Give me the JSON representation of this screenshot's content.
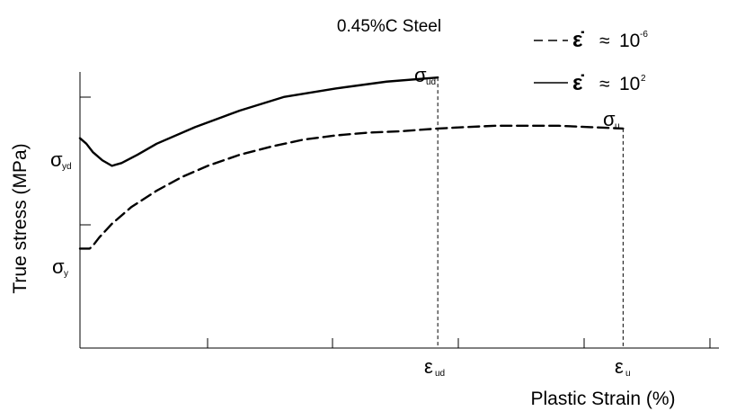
{
  "chart_data": {
    "type": "line",
    "title": "0.45%C Steel",
    "xlabel": "Plastic Strain (%)",
    "ylabel": "True stress (MPa)",
    "x_ticks": [
      "ε_ud",
      "ε_u"
    ],
    "y_ticks": [
      "σ_yd",
      "σ_y"
    ],
    "legend": {
      "placement": "top-right",
      "entries": [
        {
          "style": "dashed",
          "symbol": "ε̇",
          "relation": "≈",
          "base": "10",
          "exponent": "-6"
        },
        {
          "style": "solid",
          "symbol": "ε̇",
          "relation": "≈",
          "base": "10",
          "exponent": "2"
        }
      ]
    },
    "annotations": [
      {
        "base": "σ",
        "subscript": "ud"
      },
      {
        "base": "σ",
        "subscript": "u"
      },
      {
        "base": "σ",
        "subscript": "yd"
      },
      {
        "base": "σ",
        "subscript": "y"
      },
      {
        "base": "ε",
        "subscript": "ud"
      },
      {
        "base": "ε",
        "subscript": "u"
      }
    ],
    "series": [
      {
        "style": "solid",
        "x": [
          0,
          0.01,
          0.02,
          0.035,
          0.05,
          0.065,
          0.09,
          0.12,
          0.18,
          0.25,
          0.32,
          0.4,
          0.48,
          0.56
        ],
        "y": [
          0.76,
          0.74,
          0.71,
          0.68,
          0.66,
          0.67,
          0.7,
          0.74,
          0.8,
          0.86,
          0.91,
          0.94,
          0.965,
          0.98
        ]
      },
      {
        "style": "dashed",
        "x": [
          0,
          0.015,
          0.02,
          0.03,
          0.05,
          0.08,
          0.12,
          0.16,
          0.2,
          0.25,
          0.3,
          0.35,
          0.4,
          0.45,
          0.5,
          0.56,
          0.6,
          0.65,
          0.7,
          0.75,
          0.8,
          0.85
        ],
        "y": [
          0.36,
          0.36,
          0.37,
          0.4,
          0.45,
          0.51,
          0.57,
          0.62,
          0.66,
          0.7,
          0.73,
          0.755,
          0.77,
          0.78,
          0.785,
          0.795,
          0.8,
          0.805,
          0.805,
          0.805,
          0.8,
          0.795
        ]
      }
    ],
    "xlim": [
      0,
      1
    ],
    "ylim": [
      0,
      1
    ],
    "grid": false
  }
}
